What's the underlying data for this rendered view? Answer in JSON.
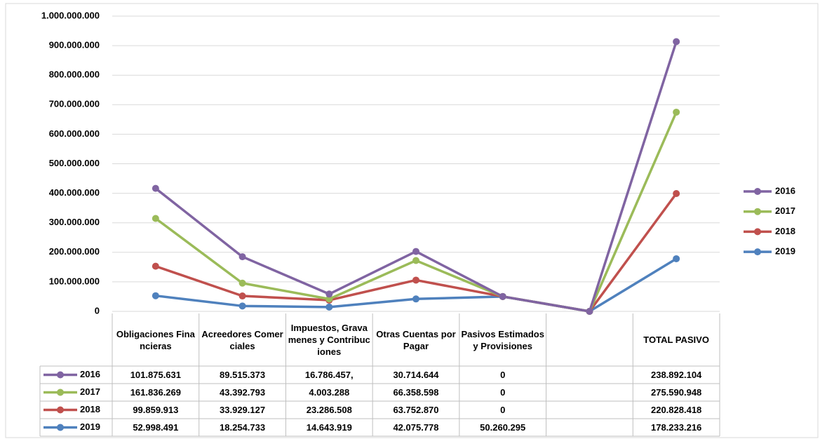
{
  "chart_data": {
    "type": "stacked-line",
    "categories": [
      "Obligaciones Financieras",
      "Acreedores Comerciales",
      "Impuestos, Gravamenes y Contribuciones",
      "Otras Cuentas por Pagar",
      "Pasivos Estimados y Provisiones",
      null,
      "TOTAL PASIVO"
    ],
    "series": [
      {
        "name": "2016",
        "color": "#8064a2",
        "values": [
          101875631,
          89515373,
          16786457,
          30714644,
          0,
          0,
          238892104
        ],
        "value_labels": [
          "101.875.631",
          "89.515.373",
          "16.786.457,",
          "30.714.644",
          "0",
          null,
          "238.892.104"
        ]
      },
      {
        "name": "2017",
        "color": "#9bbb59",
        "values": [
          161836269,
          43392793,
          4003288,
          66358598,
          0,
          0,
          275590948
        ],
        "value_labels": [
          "161.836.269",
          "43.392.793",
          "4.003.288",
          "66.358.598",
          "0",
          null,
          "275.590.948"
        ]
      },
      {
        "name": "2018",
        "color": "#c0504d",
        "values": [
          99859913,
          33929127,
          23286508,
          63752870,
          0,
          0,
          220828418
        ],
        "value_labels": [
          "99.859.913",
          "33.929.127",
          "23.286.508",
          "63.752.870",
          "0",
          null,
          "220.828.418"
        ]
      },
      {
        "name": "2019",
        "color": "#4f81bd",
        "values": [
          52998491,
          18254733,
          14643919,
          42075778,
          50260295,
          0,
          178233216
        ],
        "value_labels": [
          "52.998.491",
          "18.254.733",
          "14.643.919",
          "42.075.778",
          "50.260.295",
          null,
          "178.233.216"
        ]
      }
    ],
    "ylim": [
      0,
      1000000000
    ],
    "yticks": [
      0,
      {
        "value": 100000000,
        "label": "100.000.000"
      },
      {
        "value": 200000000,
        "label": "200.000.000"
      },
      {
        "value": 300000000,
        "label": "300.000.000"
      },
      {
        "value": 400000000,
        "label": "400.000.000"
      },
      {
        "value": 500000000,
        "label": "500.000.000"
      },
      {
        "value": 600000000,
        "label": "600.000.000"
      },
      {
        "value": 700000000,
        "label": "700.000.000"
      },
      {
        "value": 800000000,
        "label": "800.000.000"
      },
      {
        "value": 900000000,
        "label": "900.000.000"
      },
      {
        "value": 1000000000,
        "label": "1.000.000.000"
      }
    ],
    "grid": true,
    "legend": "right",
    "data_table": true
  }
}
